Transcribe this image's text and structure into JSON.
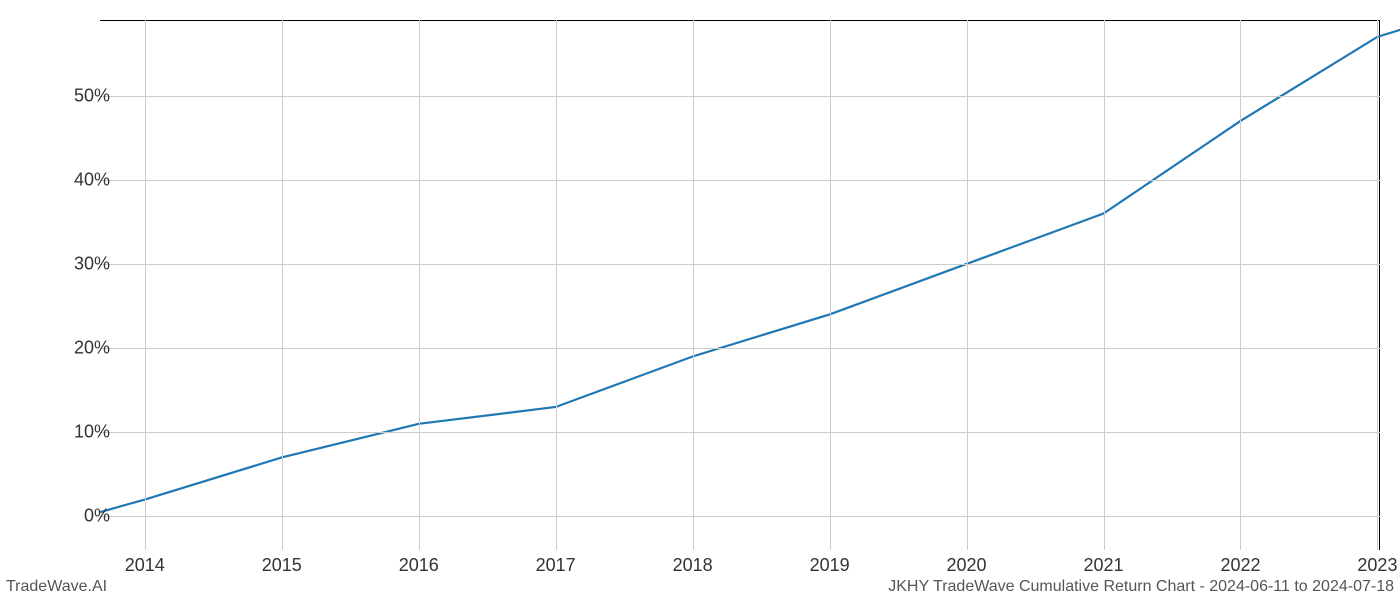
{
  "chart": {
    "type": "line",
    "background_color": "#ffffff",
    "grid_color": "#cccccc",
    "axis_color": "#000000",
    "line_color": "#1f77b4",
    "line_width": 2.2,
    "label_fontsize": 18,
    "footer_fontsize": 16,
    "x_categories": [
      "2014",
      "2015",
      "2016",
      "2017",
      "2018",
      "2019",
      "2020",
      "2021",
      "2022",
      "2023"
    ],
    "x_positions_pct": [
      3.5,
      14.2,
      24.9,
      35.6,
      46.3,
      57.0,
      67.7,
      78.4,
      89.1,
      99.8
    ],
    "x_start_pct": 0,
    "x_end_pct": 103,
    "y_ticks": [
      "0%",
      "10%",
      "20%",
      "30%",
      "40%",
      "50%"
    ],
    "y_tick_values": [
      0,
      10,
      20,
      30,
      40,
      50
    ],
    "y_min": -4,
    "y_max": 59,
    "series": {
      "x_pct": [
        0,
        3.5,
        14.2,
        24.9,
        35.6,
        46.3,
        57.0,
        67.7,
        78.4,
        89.1,
        99.8,
        103
      ],
      "y_values": [
        0.5,
        2,
        7,
        11,
        13,
        19,
        24,
        30,
        36,
        47,
        57,
        58.5
      ]
    }
  },
  "footer": {
    "left": "TradeWave.AI",
    "right": "JKHY TradeWave Cumulative Return Chart - 2024-06-11 to 2024-07-18"
  }
}
